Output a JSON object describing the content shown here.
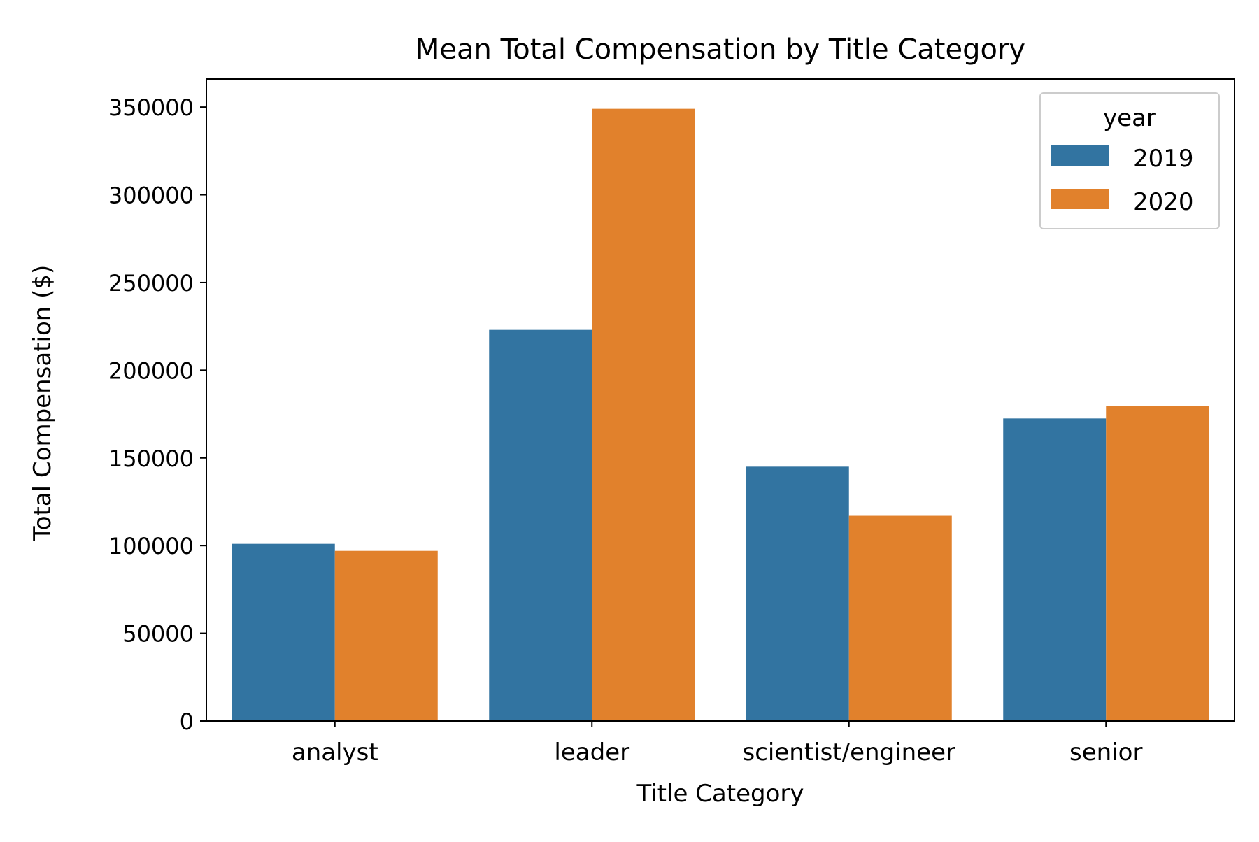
{
  "chart_data": {
    "type": "bar",
    "title": "Mean Total Compensation by Title Category",
    "xlabel": "Title Category",
    "ylabel": "Total Compensation ($)",
    "categories": [
      "analyst",
      "leader",
      "scientist/engineer",
      "senior"
    ],
    "series": [
      {
        "name": "2019",
        "color": "#3274a1",
        "values": [
          101000,
          223000,
          145000,
          172500
        ]
      },
      {
        "name": "2020",
        "color": "#e1812c",
        "values": [
          97000,
          349000,
          117000,
          179500
        ]
      }
    ],
    "ylim": [
      0,
      366000
    ],
    "yticks": [
      0,
      50000,
      100000,
      150000,
      200000,
      250000,
      300000,
      350000
    ],
    "ytick_labels": [
      "0",
      "50000",
      "100000",
      "150000",
      "200000",
      "250000",
      "300000",
      "350000"
    ],
    "grid": false,
    "legend": {
      "title": "year",
      "placement": "top-right"
    }
  }
}
